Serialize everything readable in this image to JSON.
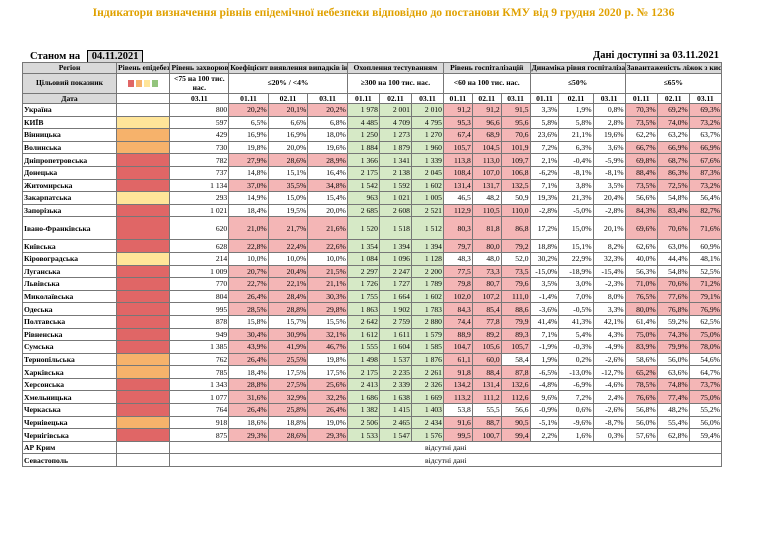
{
  "title": "Індикатори визначення рівнів епідемічної небезпеки відповідно до постанови КМУ від 9 грудня 2020 р. № 1236",
  "status_label": "Станом на",
  "status_date": "04.11.2021",
  "available_label": "Дані доступні за 03.11.2021",
  "headers": {
    "region": "Регіон",
    "level": "Рівень епідебезпеки",
    "incidence": "Рівень захворюваності",
    "detection": "Коефіцієнт виявлення випадків інфікування",
    "testing": "Охоплення тестуванням",
    "hosp": "Рівень госпіталізацій",
    "hosp_dyn": "Динаміка рівня госпіталізацій",
    "beds": "Завантаженість ліжок з киснем",
    "target_label": "Цільовий показник",
    "incidence_target": "<75 на 100 тис. нас.",
    "detection_target": "≤20% / <4%",
    "testing_target": "≥300 на 100 тис. нас.",
    "hosp_target": "<60 на 100 тис. нас.",
    "hosp_dyn_target": "≤50%",
    "beds_target": "≤65%",
    "date_label": "Дата",
    "incidence_date": "03.11",
    "d1": "01.11",
    "d2": "02.11",
    "d3": "03.11"
  },
  "legend_colors": [
    "#e06666",
    "#f6b26b",
    "#ffe599",
    "#93c47d"
  ],
  "rows": [
    {
      "name": "Україна",
      "level": "",
      "inc": "800",
      "det": [
        "20,2%",
        "20,1%",
        "20,2%"
      ],
      "test": [
        "1 978",
        "2 001",
        "2 010"
      ],
      "hosp": [
        "91,2",
        "91,2",
        "91,5"
      ],
      "dyn": [
        "3,3%",
        "1,9%",
        "0,8%"
      ],
      "beds": [
        "70,3%",
        "69,2%",
        "69,3%"
      ]
    },
    {
      "name": "КИЇВ",
      "level": "yellow",
      "inc": "597",
      "det": [
        "6,5%",
        "6,6%",
        "6,8%"
      ],
      "test": [
        "4 485",
        "4 709",
        "4 795"
      ],
      "hosp": [
        "95,3",
        "96,6",
        "95,6"
      ],
      "dyn": [
        "5,8%",
        "5,8%",
        "2,8%"
      ],
      "beds": [
        "73,5%",
        "74,0%",
        "73,2%"
      ]
    },
    {
      "name": "Вінницька",
      "level": "orange",
      "inc": "429",
      "det": [
        "16,9%",
        "16,9%",
        "18,0%"
      ],
      "test": [
        "1 250",
        "1 273",
        "1 270"
      ],
      "hosp": [
        "67,4",
        "68,9",
        "70,6"
      ],
      "dyn": [
        "23,6%",
        "21,1%",
        "19,6%"
      ],
      "beds": [
        "62,2%",
        "63,2%",
        "63,7%"
      ]
    },
    {
      "name": "Волинська",
      "level": "orange",
      "inc": "730",
      "det": [
        "19,8%",
        "20,0%",
        "19,6%"
      ],
      "test": [
        "1 884",
        "1 879",
        "1 960"
      ],
      "hosp": [
        "105,7",
        "104,5",
        "101,9"
      ],
      "dyn": [
        "7,2%",
        "6,3%",
        "3,6%"
      ],
      "beds": [
        "66,7%",
        "66,9%",
        "66,9%"
      ]
    },
    {
      "name": "Дніпропетровська",
      "level": "red",
      "inc": "782",
      "det": [
        "27,9%",
        "28,6%",
        "28,9%"
      ],
      "test": [
        "1 366",
        "1 341",
        "1 339"
      ],
      "hosp": [
        "113,8",
        "113,0",
        "109,7"
      ],
      "dyn": [
        "2,1%",
        "-0,4%",
        "-5,9%"
      ],
      "beds": [
        "69,8%",
        "68,7%",
        "67,6%"
      ]
    },
    {
      "name": "Донецька",
      "level": "red",
      "inc": "737",
      "det": [
        "14,8%",
        "15,1%",
        "16,4%"
      ],
      "test": [
        "2 175",
        "2 138",
        "2 045"
      ],
      "hosp": [
        "108,4",
        "107,0",
        "106,8"
      ],
      "dyn": [
        "-6,2%",
        "-8,1%",
        "-8,1%"
      ],
      "beds": [
        "88,4%",
        "86,3%",
        "87,3%"
      ]
    },
    {
      "name": "Житомирська",
      "level": "red",
      "inc": "1 134",
      "det": [
        "37,0%",
        "35,5%",
        "34,8%"
      ],
      "test": [
        "1 542",
        "1 592",
        "1 602"
      ],
      "hosp": [
        "131,4",
        "131,7",
        "132,5"
      ],
      "dyn": [
        "7,1%",
        "3,8%",
        "3,5%"
      ],
      "beds": [
        "73,5%",
        "72,5%",
        "73,2%"
      ]
    },
    {
      "name": "Закарпатська",
      "level": "yellow",
      "inc": "293",
      "det": [
        "14,9%",
        "15,0%",
        "15,4%"
      ],
      "test": [
        "963",
        "1 021",
        "1 005"
      ],
      "hosp": [
        "46,5",
        "48,2",
        "50,9"
      ],
      "dyn": [
        "19,3%",
        "21,3%",
        "20,4%"
      ],
      "beds": [
        "56,6%",
        "54,8%",
        "56,4%"
      ]
    },
    {
      "name": "Запорізька",
      "level": "red",
      "inc": "1 021",
      "det": [
        "18,4%",
        "19,5%",
        "20,0%"
      ],
      "test": [
        "2 685",
        "2 608",
        "2 521"
      ],
      "hosp": [
        "112,9",
        "110,5",
        "110,0"
      ],
      "dyn": [
        "-2,8%",
        "-5,0%",
        "-2,8%"
      ],
      "beds": [
        "84,3%",
        "83,4%",
        "82,7%"
      ]
    },
    {
      "name": "Івано-Франківська",
      "level": "red",
      "inc": "620",
      "det": [
        "21,0%",
        "21,7%",
        "21,6%"
      ],
      "test": [
        "1 520",
        "1 518",
        "1 512"
      ],
      "hosp": [
        "80,3",
        "81,8",
        "86,8"
      ],
      "dyn": [
        "17,2%",
        "15,0%",
        "20,1%"
      ],
      "beds": [
        "69,6%",
        "70,6%",
        "71,6%"
      ],
      "tall": true
    },
    {
      "name": "Київська",
      "level": "red",
      "inc": "628",
      "det": [
        "22,8%",
        "22,4%",
        "22,6%"
      ],
      "test": [
        "1 354",
        "1 394",
        "1 394"
      ],
      "hosp": [
        "79,7",
        "80,0",
        "79,2"
      ],
      "dyn": [
        "18,8%",
        "15,1%",
        "8,2%"
      ],
      "beds": [
        "62,6%",
        "63,0%",
        "60,9%"
      ]
    },
    {
      "name": "Кіровоградська",
      "level": "yellow",
      "inc": "214",
      "det": [
        "10,0%",
        "10,0%",
        "10,0%"
      ],
      "test": [
        "1 084",
        "1 096",
        "1 128"
      ],
      "hosp": [
        "48,3",
        "48,0",
        "52,0"
      ],
      "dyn": [
        "30,2%",
        "22,9%",
        "32,3%"
      ],
      "beds": [
        "40,0%",
        "44,4%",
        "48,1%"
      ]
    },
    {
      "name": "Луганська",
      "level": "red",
      "inc": "1 009",
      "det": [
        "20,7%",
        "20,4%",
        "21,5%"
      ],
      "test": [
        "2 297",
        "2 247",
        "2 200"
      ],
      "hosp": [
        "77,5",
        "73,3",
        "73,5"
      ],
      "dyn": [
        "-15,0%",
        "-18,9%",
        "-15,4%"
      ],
      "beds": [
        "56,3%",
        "54,8%",
        "52,5%"
      ]
    },
    {
      "name": "Львівська",
      "level": "red",
      "inc": "770",
      "det": [
        "22,7%",
        "22,1%",
        "21,1%"
      ],
      "test": [
        "1 726",
        "1 727",
        "1 789"
      ],
      "hosp": [
        "79,8",
        "80,7",
        "79,6"
      ],
      "dyn": [
        "3,5%",
        "3,0%",
        "-2,3%"
      ],
      "beds": [
        "71,0%",
        "70,6%",
        "71,2%"
      ]
    },
    {
      "name": "Миколаївська",
      "level": "red",
      "inc": "804",
      "det": [
        "26,4%",
        "28,4%",
        "30,3%"
      ],
      "test": [
        "1 755",
        "1 664",
        "1 602"
      ],
      "hosp": [
        "102,0",
        "107,2",
        "111,0"
      ],
      "dyn": [
        "-1,4%",
        "7,0%",
        "8,0%"
      ],
      "beds": [
        "76,5%",
        "77,6%",
        "79,1%"
      ]
    },
    {
      "name": "Одеська",
      "level": "red",
      "inc": "995",
      "det": [
        "28,5%",
        "28,8%",
        "29,8%"
      ],
      "test": [
        "1 863",
        "1 902",
        "1 783"
      ],
      "hosp": [
        "84,3",
        "85,4",
        "88,6"
      ],
      "dyn": [
        "-3,6%",
        "-0,5%",
        "3,3%"
      ],
      "beds": [
        "80,0%",
        "76,8%",
        "76,9%"
      ]
    },
    {
      "name": "Полтавська",
      "level": "red",
      "inc": "878",
      "det": [
        "15,8%",
        "15,7%",
        "15,5%"
      ],
      "test": [
        "2 642",
        "2 759",
        "2 880"
      ],
      "hosp": [
        "74,4",
        "77,8",
        "79,9"
      ],
      "dyn": [
        "41,4%",
        "41,3%",
        "42,1%"
      ],
      "beds": [
        "61,4%",
        "59,2%",
        "62,5%"
      ]
    },
    {
      "name": "Рівненська",
      "level": "red",
      "inc": "949",
      "det": [
        "30,4%",
        "30,9%",
        "32,1%"
      ],
      "test": [
        "1 612",
        "1 611",
        "1 579"
      ],
      "hosp": [
        "88,9",
        "89,2",
        "89,3"
      ],
      "dyn": [
        "7,1%",
        "5,4%",
        "4,3%"
      ],
      "beds": [
        "75,0%",
        "74,3%",
        "75,0%"
      ]
    },
    {
      "name": "Сумська",
      "level": "red",
      "inc": "1 385",
      "det": [
        "43,9%",
        "41,9%",
        "46,7%"
      ],
      "test": [
        "1 555",
        "1 604",
        "1 585"
      ],
      "hosp": [
        "104,7",
        "105,6",
        "105,7"
      ],
      "dyn": [
        "-1,9%",
        "-0,3%",
        "-4,9%"
      ],
      "beds": [
        "83,9%",
        "79,9%",
        "78,0%"
      ]
    },
    {
      "name": "Тернопільська",
      "level": "orange",
      "inc": "762",
      "det": [
        "26,4%",
        "25,5%",
        "19,8%"
      ],
      "test": [
        "1 498",
        "1 537",
        "1 876"
      ],
      "hosp": [
        "61,1",
        "60,0",
        "58,4"
      ],
      "dyn": [
        "1,9%",
        "0,2%",
        "-2,6%"
      ],
      "beds": [
        "58,6%",
        "56,0%",
        "54,6%"
      ]
    },
    {
      "name": "Харківська",
      "level": "orange",
      "inc": "785",
      "det": [
        "18,4%",
        "17,5%",
        "17,5%"
      ],
      "test": [
        "2 175",
        "2 235",
        "2 261"
      ],
      "hosp": [
        "91,8",
        "88,4",
        "87,8"
      ],
      "dyn": [
        "-6,5%",
        "-13,0%",
        "-12,7%"
      ],
      "beds": [
        "65,2%",
        "63,6%",
        "64,7%"
      ]
    },
    {
      "name": "Херсонська",
      "level": "red",
      "inc": "1 343",
      "det": [
        "28,8%",
        "27,5%",
        "25,6%"
      ],
      "test": [
        "2 413",
        "2 339",
        "2 326"
      ],
      "hosp": [
        "134,2",
        "131,4",
        "132,6"
      ],
      "dyn": [
        "-4,8%",
        "-6,9%",
        "-4,6%"
      ],
      "beds": [
        "78,5%",
        "74,8%",
        "73,7%"
      ]
    },
    {
      "name": "Хмельницька",
      "level": "red",
      "inc": "1 077",
      "det": [
        "31,6%",
        "32,9%",
        "32,2%"
      ],
      "test": [
        "1 686",
        "1 638",
        "1 669"
      ],
      "hosp": [
        "113,2",
        "111,2",
        "112,6"
      ],
      "dyn": [
        "9,6%",
        "7,2%",
        "2,4%"
      ],
      "beds": [
        "76,6%",
        "77,4%",
        "75,0%"
      ]
    },
    {
      "name": "Черкаська",
      "level": "red",
      "inc": "764",
      "det": [
        "26,4%",
        "25,8%",
        "26,4%"
      ],
      "test": [
        "1 382",
        "1 415",
        "1 403"
      ],
      "hosp": [
        "53,8",
        "55,5",
        "56,6"
      ],
      "dyn": [
        "-0,9%",
        "0,6%",
        "-2,6%"
      ],
      "beds": [
        "56,8%",
        "48,2%",
        "55,2%"
      ]
    },
    {
      "name": "Чернівецька",
      "level": "orange",
      "inc": "918",
      "det": [
        "18,6%",
        "18,8%",
        "19,0%"
      ],
      "test": [
        "2 506",
        "2 465",
        "2 434"
      ],
      "hosp": [
        "91,6",
        "88,7",
        "90,5"
      ],
      "dyn": [
        "-5,1%",
        "-9,6%",
        "-8,7%"
      ],
      "beds": [
        "56,0%",
        "55,4%",
        "56,0%"
      ]
    },
    {
      "name": "Чернігівська",
      "level": "red",
      "inc": "875",
      "det": [
        "29,3%",
        "28,6%",
        "29,3%"
      ],
      "test": [
        "1 533",
        "1 547",
        "1 576"
      ],
      "hosp": [
        "99,5",
        "100,7",
        "99,4"
      ],
      "dyn": [
        "2,2%",
        "1,6%",
        "0,3%"
      ],
      "beds": [
        "57,6%",
        "62,8%",
        "59,4%"
      ]
    }
  ],
  "na_rows": [
    {
      "name": "АР Крим",
      "text": "відсутні дані"
    },
    {
      "name": "Севастополь",
      "text": "відсутні дані"
    }
  ]
}
